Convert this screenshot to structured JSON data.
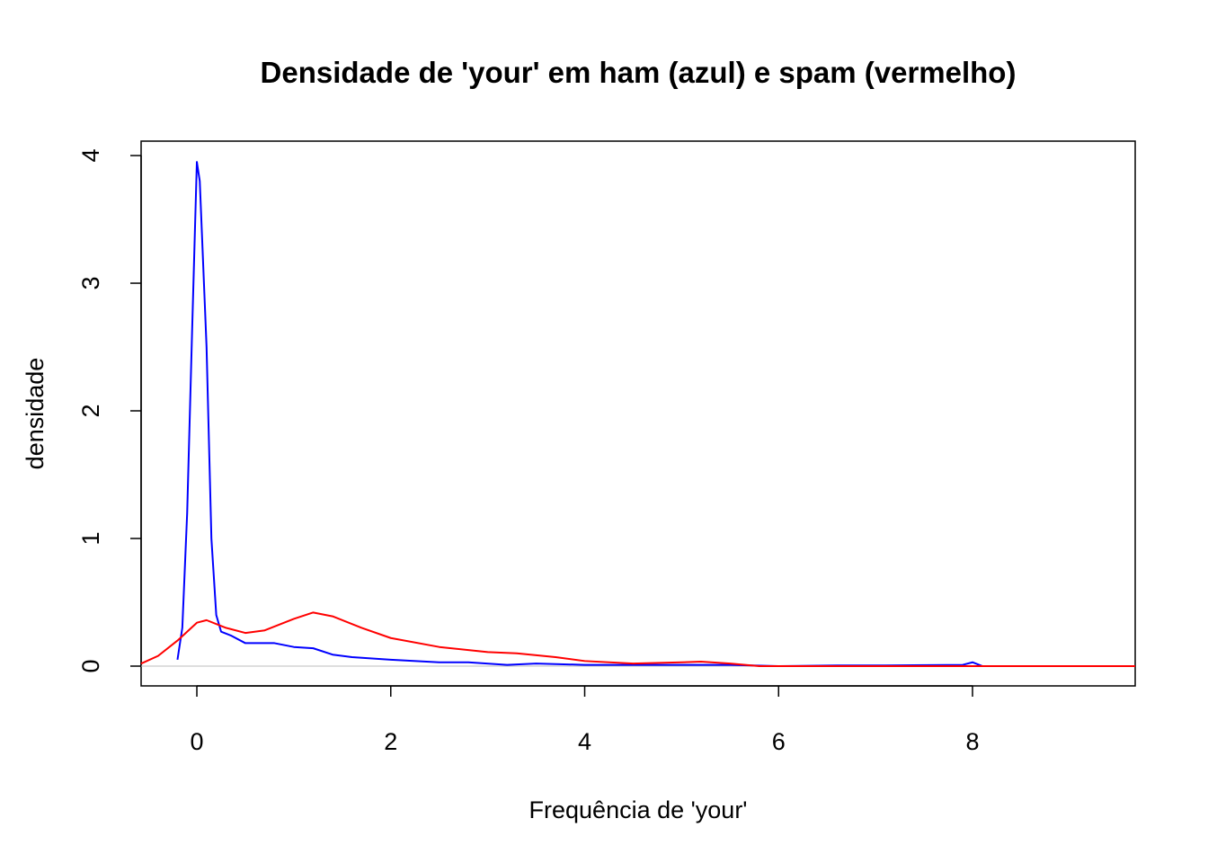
{
  "chart_data": {
    "type": "line",
    "title": "Densidade de 'your' em ham (azul) e spam (vermelho)",
    "x_label": "Frequência de 'your'",
    "y_label": "densidade",
    "xlim": [
      -0.575,
      9.678
    ],
    "ylim": [
      -0.155,
      4.113
    ],
    "xticks": [
      0,
      2,
      4,
      6,
      8
    ],
    "yticks": [
      0,
      1,
      2,
      3,
      4
    ],
    "series": [
      {
        "color": "#0000ff",
        "x": [
          -0.2,
          -0.15,
          -0.1,
          -0.05,
          0,
          0.03,
          0.1,
          0.15,
          0.2,
          0.25,
          0.35,
          0.5,
          0.8,
          1.0,
          1.2,
          1.4,
          1.6,
          2.0,
          2.5,
          2.8,
          3.2,
          3.5,
          4.0,
          5.0,
          5.5,
          6.0,
          6.6,
          7.1,
          7.9,
          8.0,
          8.1
        ],
        "values": [
          0.05,
          0.3,
          1.2,
          2.6,
          3.95,
          3.8,
          2.5,
          1.0,
          0.4,
          0.27,
          0.24,
          0.18,
          0.18,
          0.15,
          0.14,
          0.09,
          0.07,
          0.05,
          0.03,
          0.03,
          0.01,
          0.02,
          0.01,
          0.01,
          0.01,
          0.0,
          0.005,
          0.005,
          0.01,
          0.03,
          0.0
        ]
      },
      {
        "color": "#ff0000",
        "x": [
          -0.575,
          -0.4,
          -0.2,
          0,
          0.1,
          0.3,
          0.5,
          0.7,
          1.0,
          1.2,
          1.4,
          1.7,
          2.0,
          2.5,
          3.0,
          3.3,
          3.7,
          4.0,
          4.5,
          5.0,
          5.2,
          5.5,
          5.8,
          7.0,
          8.0,
          9.678
        ],
        "values": [
          0.02,
          0.08,
          0.2,
          0.34,
          0.36,
          0.3,
          0.26,
          0.28,
          0.37,
          0.42,
          0.39,
          0.3,
          0.22,
          0.15,
          0.11,
          0.1,
          0.07,
          0.04,
          0.02,
          0.03,
          0.035,
          0.02,
          0.0,
          0.0,
          0.0,
          0.0
        ]
      }
    ]
  }
}
